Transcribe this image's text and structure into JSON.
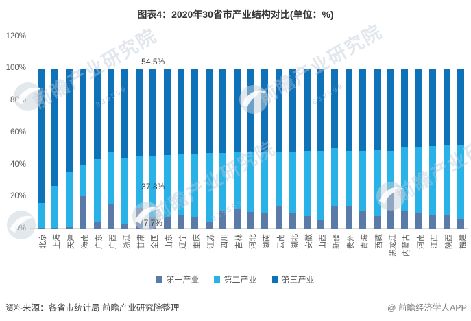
{
  "title": "图表4：2020年30省市产业结构对比(单位：%)",
  "chart_data": {
    "type": "bar",
    "stacked": true,
    "unit": "%",
    "title": "图表4：2020年30省市产业结构对比(单位：%)",
    "categories": [
      "北京",
      "上海",
      "天津",
      "海南",
      "广东",
      "广西",
      "浙江",
      "甘肃",
      "全国",
      "山东",
      "辽宁",
      "重庆",
      "江苏",
      "四川",
      "吉林",
      "河北",
      "湖南",
      "云南",
      "湖北",
      "安徽",
      "山西",
      "新疆",
      "贵州",
      "青海",
      "西藏",
      "黑龙江",
      "内蒙古",
      "河南",
      "江西",
      "陕西",
      "福建"
    ],
    "series": [
      {
        "name": "第一产业",
        "color": "#5a7ba7",
        "values": [
          0.4,
          0.3,
          1.5,
          20.5,
          4.3,
          16.0,
          3.3,
          13.3,
          7.7,
          7.3,
          9.1,
          7.2,
          4.4,
          11.4,
          12.7,
          10.7,
          10.1,
          14.7,
          9.7,
          8.2,
          5.4,
          14.3,
          14.2,
          11.1,
          8.0,
          25.1,
          11.7,
          9.7,
          8.7,
          8.7,
          6.2
        ]
      },
      {
        "name": "第二产业",
        "color": "#29b2e8",
        "values": [
          15.8,
          26.6,
          34.1,
          19.1,
          39.2,
          32.1,
          40.9,
          31.9,
          37.8,
          39.1,
          37.4,
          40.0,
          43.1,
          36.2,
          35.3,
          37.6,
          38.1,
          33.8,
          38.6,
          40.5,
          43.5,
          36.0,
          34.8,
          37.9,
          41.7,
          23.7,
          39.6,
          41.6,
          43.1,
          43.4,
          46.3
        ]
      },
      {
        "name": "第三产业",
        "color": "#0e72b8",
        "values": [
          83.8,
          73.1,
          64.4,
          60.4,
          56.5,
          51.9,
          55.8,
          54.8,
          54.5,
          53.6,
          53.5,
          52.8,
          52.5,
          52.4,
          52.0,
          51.7,
          51.8,
          51.5,
          51.7,
          51.3,
          51.1,
          49.7,
          51.0,
          50.9,
          50.3,
          51.2,
          48.7,
          48.7,
          48.2,
          47.9,
          47.5
        ]
      }
    ],
    "y_ticks": [
      "0%",
      "20%",
      "40%",
      "60%",
      "80%",
      "100%",
      "120%"
    ],
    "ylim": [
      0,
      120
    ],
    "grid": false,
    "legend_position": "bottom",
    "annotations": [
      {
        "category": "全国",
        "series": "第三产业",
        "text": "54.5%",
        "position": "above"
      },
      {
        "category": "全国",
        "series": "第二产业",
        "text": "37.8%",
        "position": "inside"
      },
      {
        "category": "全国",
        "series": "第一产业",
        "text": "7.7%",
        "position": "inside"
      }
    ]
  },
  "watermark": {
    "big_text": "前瞻产业研究院",
    "small_text": "839599"
  },
  "footer": {
    "source": "资料来源：各省市统计局 前瞻产业研究院整理",
    "credit": "@ 前瞻经济学人APP"
  }
}
